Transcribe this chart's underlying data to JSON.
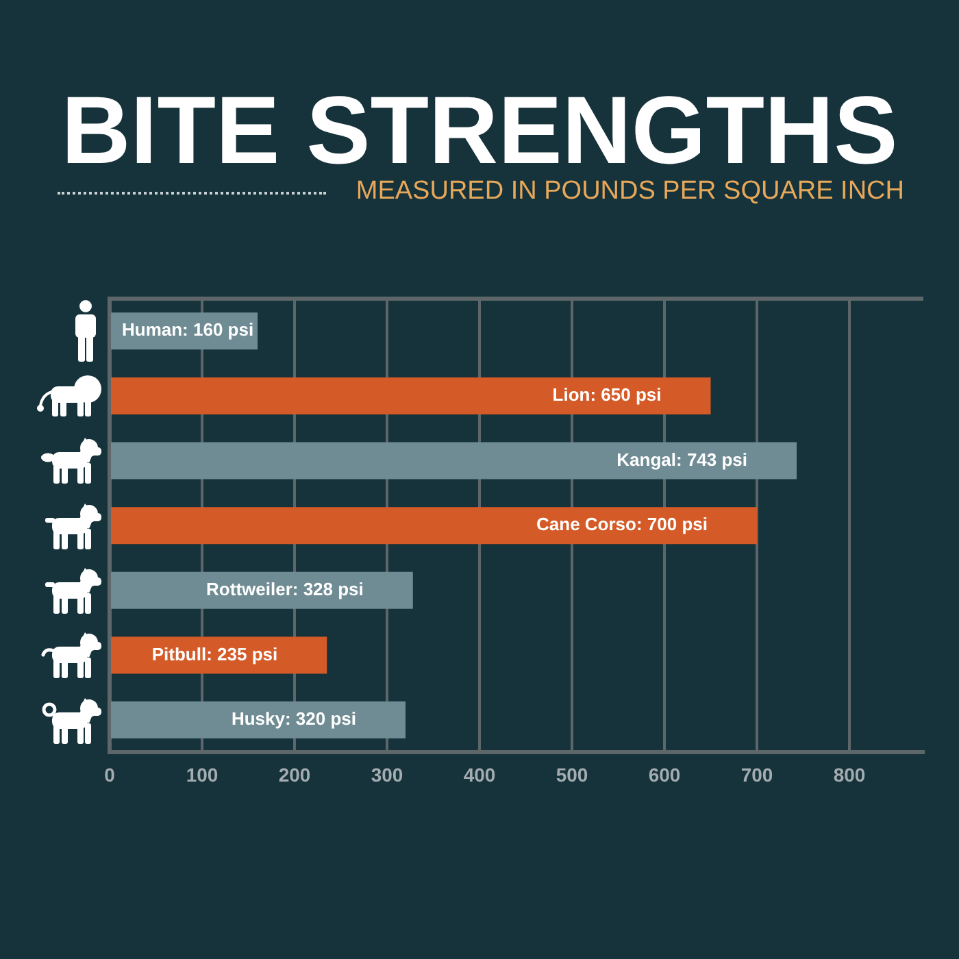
{
  "chart_data": {
    "type": "bar",
    "orientation": "horizontal",
    "title": "BITE STRENGTHS",
    "subtitle": "MEASURED IN POUNDS PER SQUARE INCH",
    "categories": [
      null,
      null,
      null,
      null,
      null,
      null,
      null
    ],
    "values": [
      160,
      650,
      743,
      700,
      328,
      235,
      320
    ],
    "colors": [
      "#6f8b94",
      "#d45a27",
      "#6f8b94",
      "#d45a27",
      "#6f8b94",
      "#d45a27",
      "#6f8b94"
    ],
    "value_labels": [
      "Human: 160 psi",
      "Lion: 650 psi",
      "Kangal: 743 psi",
      "Cane Corso: 700 psi",
      "Rottweiler: 328 psi",
      "Pitbull: 235 psi",
      "Husky: 320 psi"
    ],
    "xlim": [
      0,
      880
    ],
    "xticks": [
      0,
      100,
      200,
      300,
      400,
      500,
      600,
      700,
      800
    ],
    "grid": "x",
    "tick_labels": "x"
  }
}
